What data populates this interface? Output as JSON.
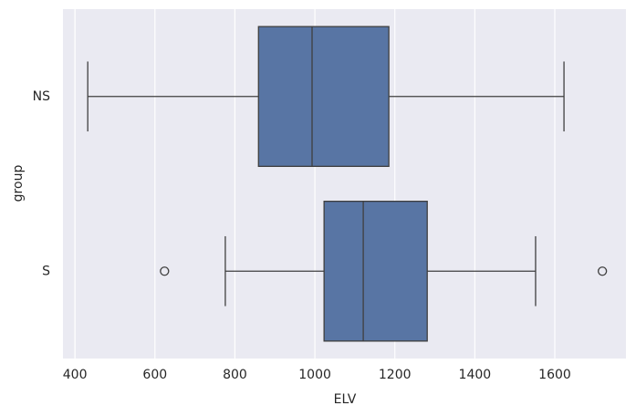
{
  "chart_data": {
    "type": "box",
    "orientation": "horizontal",
    "x_label": "ELV",
    "y_label": "group",
    "categories": [
      "NS",
      "S"
    ],
    "whisker_low": [
      432,
      776
    ],
    "q1": [
      859,
      1023
    ],
    "median": [
      993,
      1121
    ],
    "q3": [
      1185,
      1281
    ],
    "whisker_high": [
      1623,
      1552
    ],
    "outliers": [
      [],
      [
        624,
        1719
      ]
    ],
    "color": "#5875a4",
    "xlim": [
      370,
      1778
    ],
    "xticks": [
      400,
      600,
      800,
      1000,
      1200,
      1400,
      1600
    ],
    "grid": true
  }
}
